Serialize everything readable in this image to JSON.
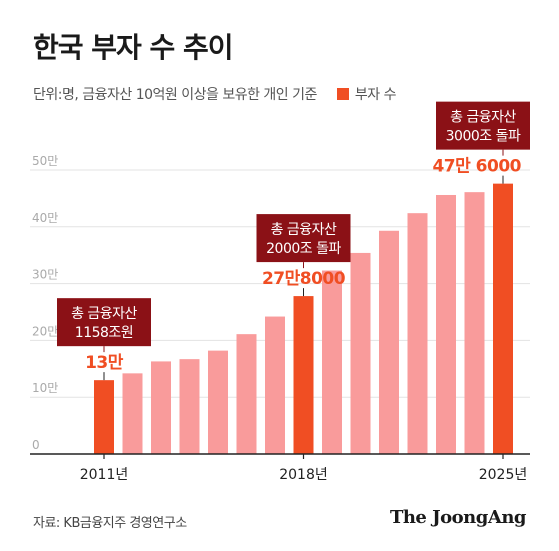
{
  "title": "한국 부자 수 추이",
  "subtitle": "단위:명, 금융자산 10억원 이상을 보유한 개인 기준",
  "legend_label": "부자 수",
  "source": "자료: KB금융지주 경영연구소",
  "brand": "The JoongAng",
  "colors": {
    "highlight": "#f04e23",
    "bar": "#f99b9b",
    "callout_bg": "#8b1116",
    "axis_text": "#aaaaaa",
    "grid": "#e3e3e3"
  },
  "chart_data": {
    "type": "bar",
    "title": "한국 부자 수 추이",
    "unit": "명",
    "categories": [
      "2011",
      "2012",
      "2013",
      "2014",
      "2015",
      "2016",
      "2017",
      "2018",
      "2019",
      "2020",
      "2021",
      "2022",
      "2023",
      "2024",
      "2025"
    ],
    "values": [
      130000,
      142000,
      163000,
      167000,
      182000,
      211000,
      242000,
      278000,
      323000,
      354000,
      393000,
      424000,
      456000,
      461000,
      476000
    ],
    "highlighted_categories": [
      "2011",
      "2018",
      "2025"
    ],
    "x_tick_labels": [
      "2011년",
      "2018년",
      "2025년"
    ],
    "y_tick_labels": [
      "0",
      "10만",
      "20만",
      "30만",
      "40만",
      "50만"
    ],
    "ylim": [
      0,
      500000
    ],
    "grid": true,
    "data_labels": [
      {
        "category": "2011",
        "text": "13만"
      },
      {
        "category": "2018",
        "text": "27만8000"
      },
      {
        "category": "2025",
        "text": "47만 6000"
      }
    ],
    "annotations": [
      {
        "category": "2011",
        "lines": [
          "총 금융자산",
          "1158조원"
        ]
      },
      {
        "category": "2018",
        "lines": [
          "총 금융자산",
          "2000조 돌파"
        ]
      },
      {
        "category": "2025",
        "lines": [
          "총 금융자산",
          "3000조 돌파"
        ]
      }
    ]
  }
}
